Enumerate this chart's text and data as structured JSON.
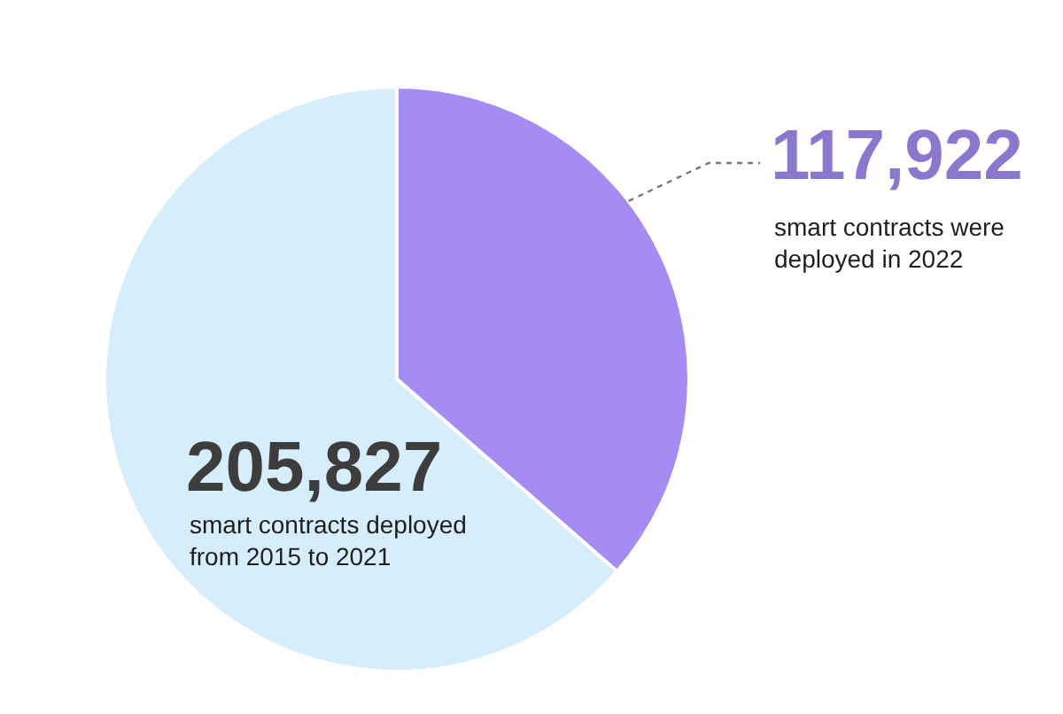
{
  "chart_data": {
    "type": "pie",
    "categories": [
      "smart contracts were deployed in 2022",
      "smart contracts deployed from 2015 to 2021"
    ],
    "values": [
      117922,
      205827
    ],
    "colors": [
      "#a58cf4",
      "#d6edfb"
    ],
    "value_labels": [
      "117,922",
      "205,827"
    ]
  }
}
